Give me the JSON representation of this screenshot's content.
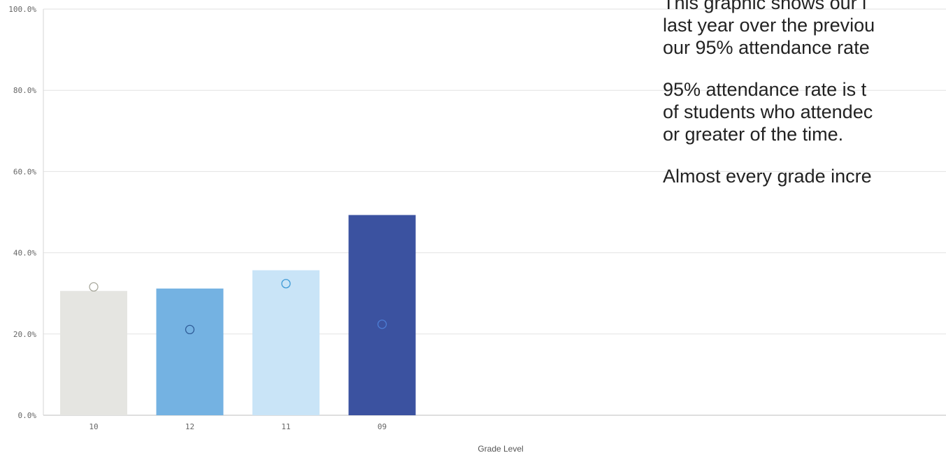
{
  "chart_data": {
    "type": "bar",
    "xlabel": "Grade Level",
    "ylabel": "",
    "ylim": [
      0,
      100
    ],
    "y_ticks": [
      "0.0%",
      "20.0%",
      "40.0%",
      "60.0%",
      "80.0%",
      "100.0%"
    ],
    "grid": true,
    "categories": [
      "10",
      "12",
      "11",
      "09"
    ],
    "values": [
      30.6,
      31.2,
      35.7,
      49.3
    ],
    "markers": [
      31.6,
      21.1,
      32.4,
      22.4
    ],
    "colors": [
      "#e5e5e1",
      "#74b2e2",
      "#c9e4f7",
      "#3b52a0"
    ],
    "marker_colors": [
      "#a8a89c",
      "#2f5c97",
      "#3e9ad6",
      "#4d7ed6"
    ]
  },
  "text_panel": {
    "paragraphs": [
      "This graphic shows our i\nlast year over the previou\nour 95% attendance rate",
      "95% attendance rate is t\nof students who attendec\nor greater of the time.",
      "Almost every grade incre"
    ]
  }
}
